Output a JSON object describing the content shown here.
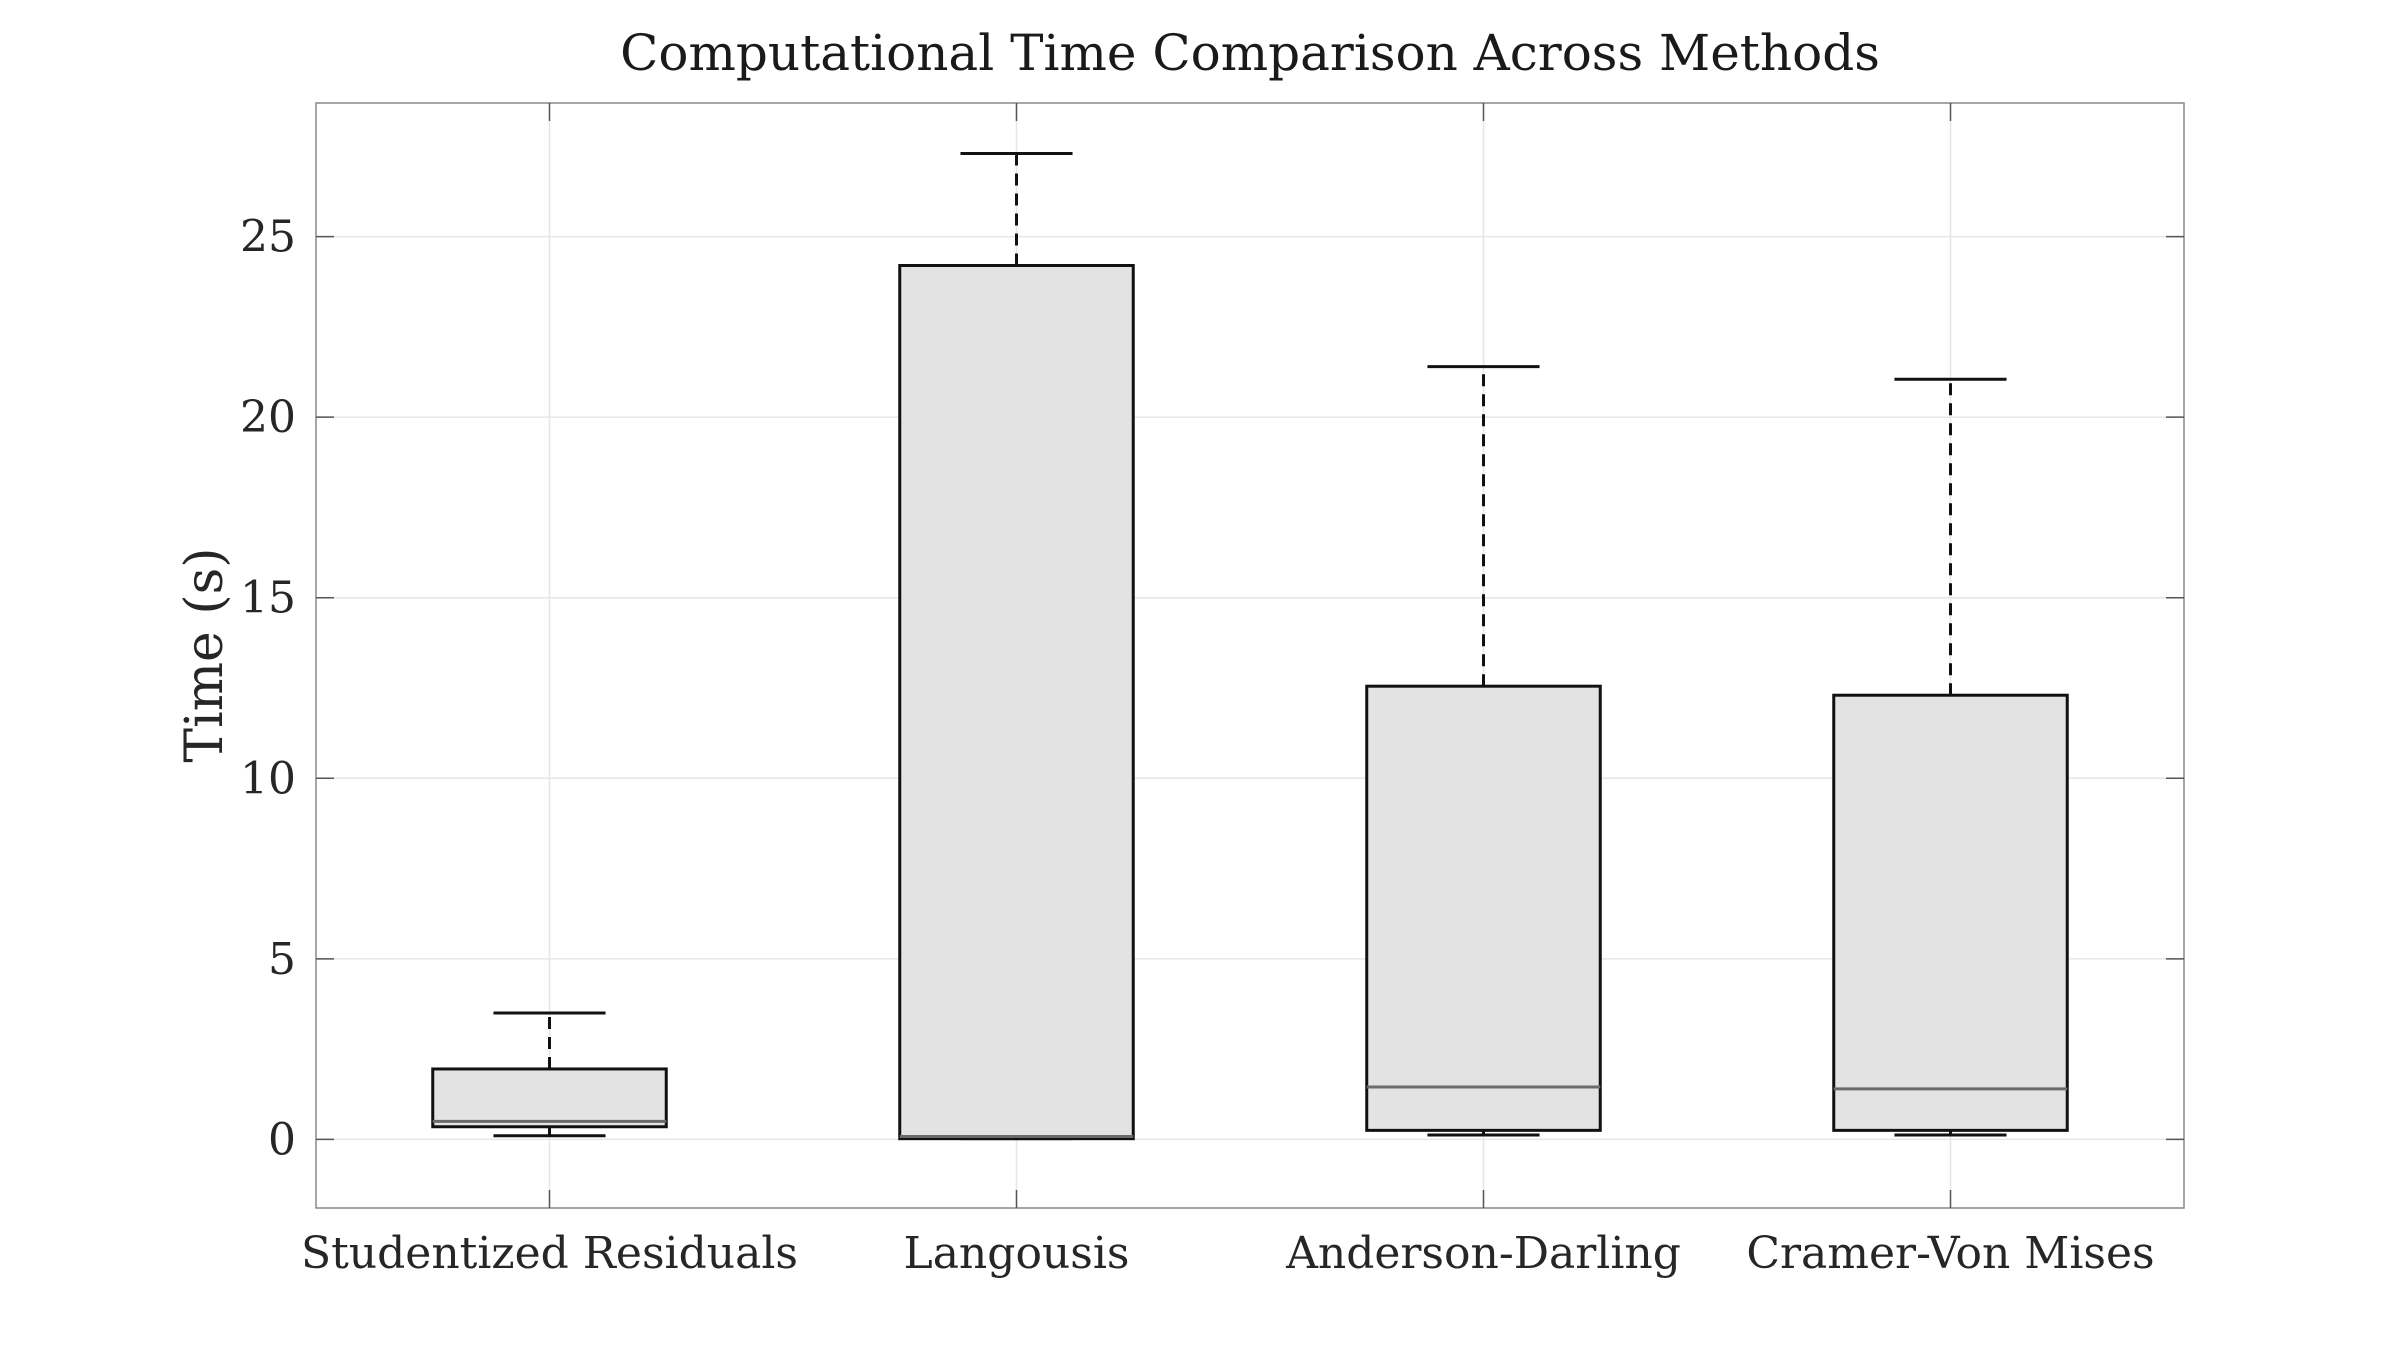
{
  "chart_data": {
    "type": "boxplot",
    "title": "Computational Time Comparison Across Methods",
    "xlabel": "",
    "ylabel": "Time (s)",
    "ylim": [
      -1.9,
      28.7
    ],
    "yticks": [
      0,
      5,
      10,
      15,
      20,
      25
    ],
    "grid": true,
    "categories": [
      "Studentized Residuals",
      "Langousis",
      "Anderson-Darling",
      "Cramer-Von Mises"
    ],
    "boxes": [
      {
        "name": "Studentized Residuals",
        "whisker_low": 0.1,
        "q1": 0.35,
        "median": 0.5,
        "q3": 1.95,
        "whisker_high": 3.5
      },
      {
        "name": "Langousis",
        "whisker_low": 0.02,
        "q1": 0.02,
        "median": 0.08,
        "q3": 24.2,
        "whisker_high": 27.3
      },
      {
        "name": "Anderson-Darling",
        "whisker_low": 0.12,
        "q1": 0.25,
        "median": 1.45,
        "q3": 12.55,
        "whisker_high": 21.4
      },
      {
        "name": "Cramer-Von Mises",
        "whisker_low": 0.12,
        "q1": 0.25,
        "median": 1.4,
        "q3": 12.3,
        "whisker_high": 21.05
      }
    ],
    "colors": {
      "box_fill": "#e3e3e3",
      "box_edge": "#111111",
      "median": "#6b6b6b",
      "grid": "#e6e6e6",
      "axes": "#888888"
    }
  }
}
